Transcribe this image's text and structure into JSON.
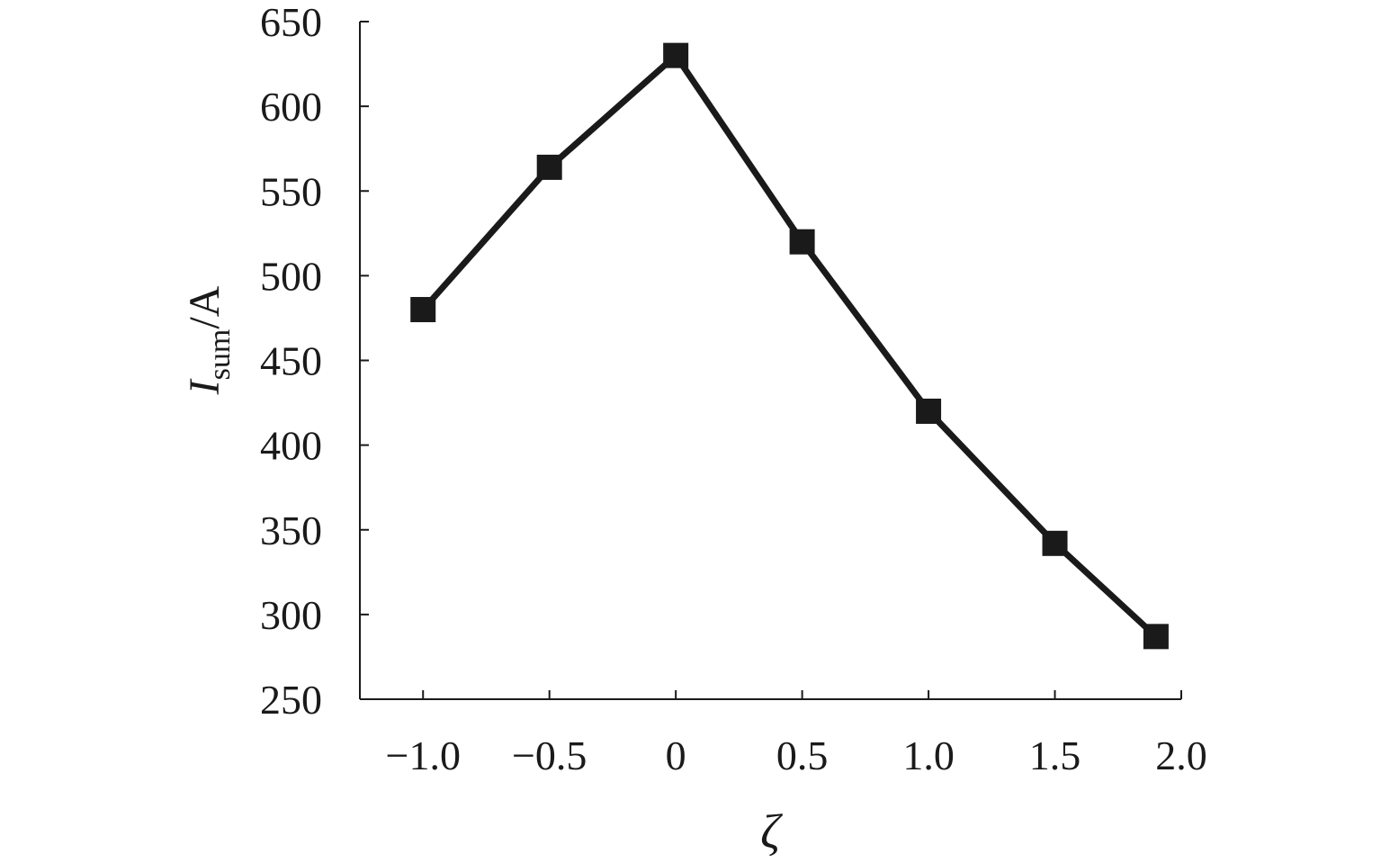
{
  "chart_data": {
    "type": "line",
    "title": "",
    "xlabel": "ζ",
    "ylabel": {
      "main": "I",
      "subscript": "sum",
      "unit": "/A"
    },
    "xlim": [
      -1.25,
      2.0
    ],
    "ylim": [
      250,
      650
    ],
    "xticks": [
      -1.0,
      -0.5,
      0,
      0.5,
      1.0,
      1.5,
      2.0
    ],
    "xtick_labels": [
      "−1.0",
      "−0.5",
      "0",
      "0.5",
      "1.0",
      "1.5",
      "2.0"
    ],
    "yticks": [
      250,
      300,
      350,
      400,
      450,
      500,
      550,
      600,
      650
    ],
    "ytick_labels": [
      "250",
      "300",
      "350",
      "400",
      "450",
      "500",
      "550",
      "600",
      "650"
    ],
    "grid": false,
    "series": [
      {
        "marker": "square",
        "color": "#1a1a1a",
        "x": [
          -1.0,
          -0.5,
          0,
          0.5,
          1.0,
          1.5,
          1.9
        ],
        "y": [
          480,
          564,
          630,
          520,
          420,
          342,
          287
        ]
      }
    ]
  }
}
